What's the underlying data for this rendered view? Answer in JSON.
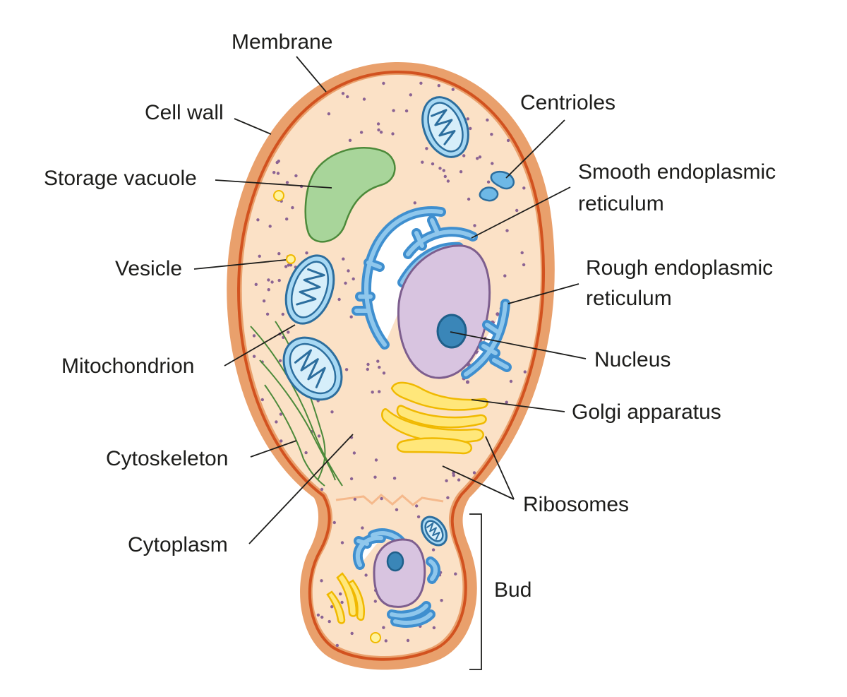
{
  "colors": {
    "cell_wall": "#e9a06c",
    "membrane": "#d2521f",
    "cytoplasm": "#fbe1c6",
    "vacuole": "#a8d59a",
    "vacuole_edge": "#4c8a3a",
    "nucleus": "#d8c4e0",
    "nucleus_edge": "#7d5e8e",
    "nucleolus": "#3a86b8",
    "endoplasmic_reticulum": "#3f8fcf",
    "mitochondrion": "#a7d8f3",
    "golgi": "#ffe77a",
    "vesicle": "#fff3a0",
    "ribosome": "#8b6393",
    "cytoskeleton": "#4c8a3a"
  },
  "labels": {
    "membrane": "Membrane",
    "cell_wall": "Cell wall",
    "storage_vacuole": "Storage vacuole",
    "vesicle": "Vesicle",
    "mitochondrion": "Mitochondrion",
    "cytoskeleton": "Cytoskeleton",
    "cytoplasm": "Cytoplasm",
    "centrioles": "Centrioles",
    "smooth_er_line1": "Smooth endoplasmic",
    "smooth_er_line2": "reticulum",
    "rough_er_line1": "Rough endoplasmic",
    "rough_er_line2": "reticulum",
    "nucleus": "Nucleus",
    "golgi": "Golgi apparatus",
    "ribosomes": "Ribosomes",
    "bud": "Bud"
  }
}
